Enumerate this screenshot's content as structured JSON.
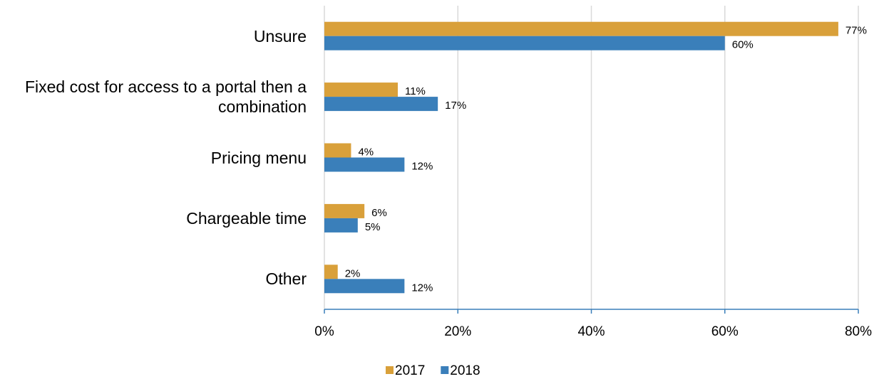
{
  "chart_data": {
    "type": "bar",
    "orientation": "horizontal",
    "categories": [
      "Unsure",
      "Fixed cost for access to a portal then a combination",
      "Pricing menu",
      "Chargeable time",
      "Other"
    ],
    "series": [
      {
        "name": "2017",
        "color": "#d9a03a",
        "values": [
          77,
          11,
          4,
          6,
          2
        ],
        "value_labels": [
          "77%",
          "11%",
          "4%",
          "6%",
          "2%"
        ]
      },
      {
        "name": "2018",
        "color": "#3a7fba",
        "values": [
          60,
          17,
          12,
          5,
          12
        ],
        "value_labels": [
          "60%",
          "17%",
          "12%",
          "5%",
          "12%"
        ]
      }
    ],
    "xlim": [
      0,
      80
    ],
    "xticks": [
      {
        "value": 0,
        "label": "0%"
      },
      {
        "value": 20,
        "label": "20%"
      },
      {
        "value": 40,
        "label": "40%"
      },
      {
        "value": 60,
        "label": "60%"
      },
      {
        "value": 80,
        "label": "80%"
      }
    ],
    "grid": true,
    "legend": "bottom"
  }
}
